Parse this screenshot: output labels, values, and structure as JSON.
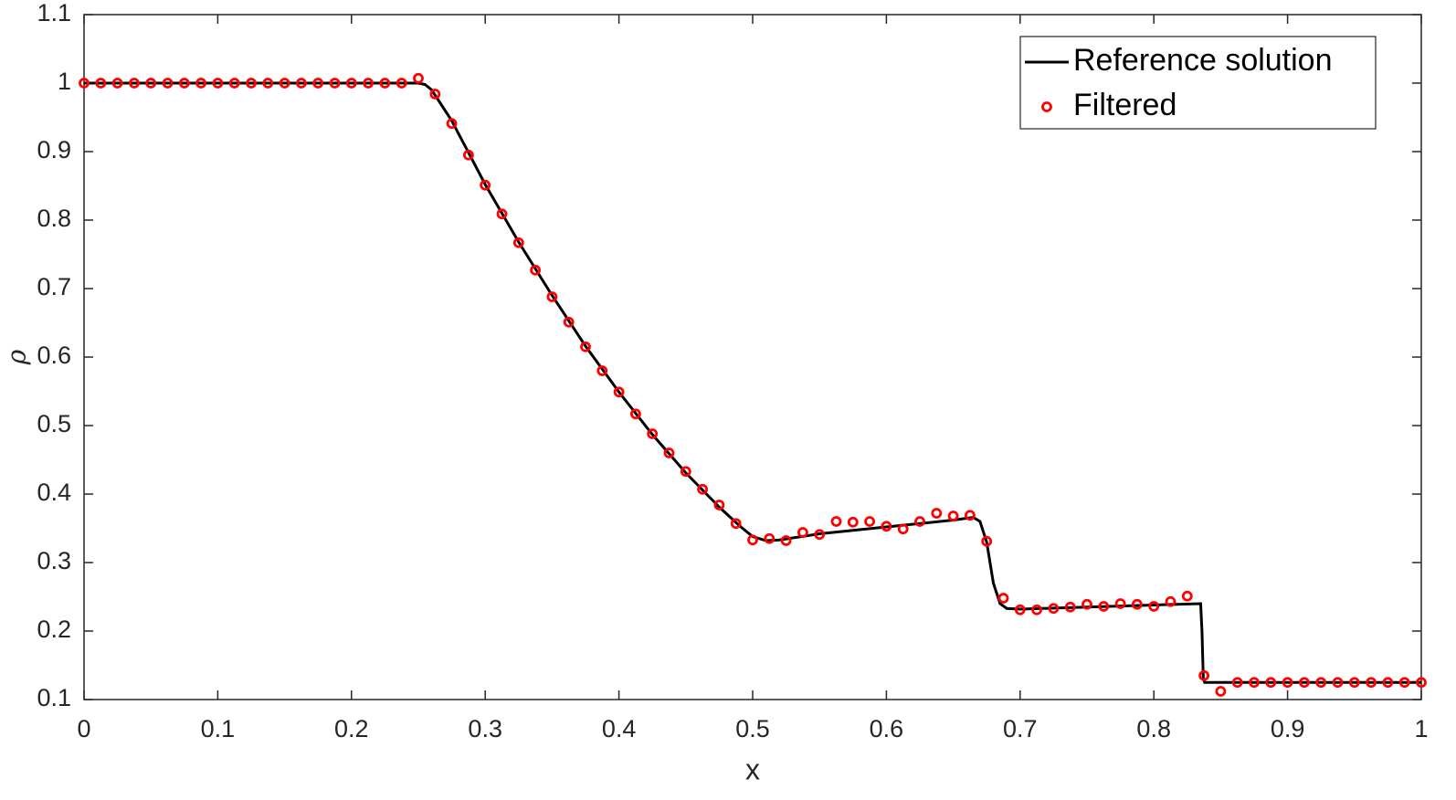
{
  "chart_data": {
    "type": "line",
    "xlabel": "x",
    "ylabel": "ρ",
    "xlim": [
      0,
      1
    ],
    "ylim": [
      0.1,
      1.1
    ],
    "xticks": [
      0,
      0.1,
      0.2,
      0.3,
      0.4,
      0.5,
      0.6,
      0.7,
      0.8,
      0.9,
      1
    ],
    "yticks": [
      0.1,
      0.2,
      0.3,
      0.4,
      0.5,
      0.6,
      0.7,
      0.8,
      0.9,
      1,
      1.1
    ],
    "legend": "upper right",
    "series": [
      {
        "name": "Reference solution",
        "color": "#000000",
        "mode": "line",
        "x": [
          0,
          0.25,
          0.255,
          0.26,
          0.265,
          0.275,
          0.3,
          0.325,
          0.35,
          0.375,
          0.4,
          0.425,
          0.45,
          0.475,
          0.49,
          0.5,
          0.51,
          0.52,
          0.55,
          0.6,
          0.65,
          0.665,
          0.67,
          0.675,
          0.68,
          0.685,
          0.69,
          0.7,
          0.75,
          0.8,
          0.835,
          0.836,
          0.837,
          0.838,
          1
        ],
        "values": [
          1,
          1,
          0.998,
          0.99,
          0.975,
          0.945,
          0.852,
          0.768,
          0.69,
          0.616,
          0.549,
          0.487,
          0.431,
          0.381,
          0.354,
          0.338,
          0.332,
          0.333,
          0.342,
          0.352,
          0.362,
          0.366,
          0.36,
          0.33,
          0.27,
          0.24,
          0.233,
          0.232,
          0.235,
          0.238,
          0.24,
          0.2,
          0.13,
          0.125,
          0.125
        ]
      },
      {
        "name": "Filtered",
        "color": "#ff0000",
        "mode": "marker",
        "x": [
          0,
          0.0125,
          0.025,
          0.0375,
          0.05,
          0.0625,
          0.075,
          0.0875,
          0.1,
          0.1125,
          0.125,
          0.1375,
          0.15,
          0.1625,
          0.175,
          0.1875,
          0.2,
          0.2125,
          0.225,
          0.2375,
          0.25,
          0.2625,
          0.275,
          0.2875,
          0.3,
          0.3125,
          0.325,
          0.3375,
          0.35,
          0.3625,
          0.375,
          0.3875,
          0.4,
          0.4125,
          0.425,
          0.4375,
          0.45,
          0.4625,
          0.475,
          0.4875,
          0.5,
          0.5125,
          0.525,
          0.5375,
          0.55,
          0.5625,
          0.575,
          0.5875,
          0.6,
          0.6125,
          0.625,
          0.6375,
          0.65,
          0.6625,
          0.675,
          0.6875,
          0.7,
          0.7125,
          0.725,
          0.7375,
          0.75,
          0.7625,
          0.775,
          0.7875,
          0.8,
          0.8125,
          0.825,
          0.8375,
          0.85,
          0.8625,
          0.875,
          0.8875,
          0.9,
          0.9125,
          0.925,
          0.9375,
          0.95,
          0.9625,
          0.975,
          0.9875,
          1
        ],
        "values": [
          1,
          1,
          1,
          1,
          1,
          1,
          1,
          1,
          1,
          1,
          1,
          1,
          1,
          1,
          1,
          1,
          1,
          1,
          1,
          1,
          1.007,
          0.984,
          0.941,
          0.895,
          0.851,
          0.809,
          0.767,
          0.727,
          0.688,
          0.651,
          0.615,
          0.58,
          0.549,
          0.517,
          0.488,
          0.46,
          0.433,
          0.407,
          0.384,
          0.357,
          0.333,
          0.335,
          0.332,
          0.344,
          0.341,
          0.36,
          0.359,
          0.36,
          0.353,
          0.349,
          0.36,
          0.372,
          0.368,
          0.369,
          0.331,
          0.248,
          0.231,
          0.231,
          0.233,
          0.235,
          0.239,
          0.236,
          0.24,
          0.239,
          0.236,
          0.243,
          0.251,
          0.135,
          0.112,
          0.125,
          0.125,
          0.125,
          0.125,
          0.125,
          0.125,
          0.125,
          0.125,
          0.125,
          0.125,
          0.125,
          0.125
        ]
      }
    ]
  }
}
